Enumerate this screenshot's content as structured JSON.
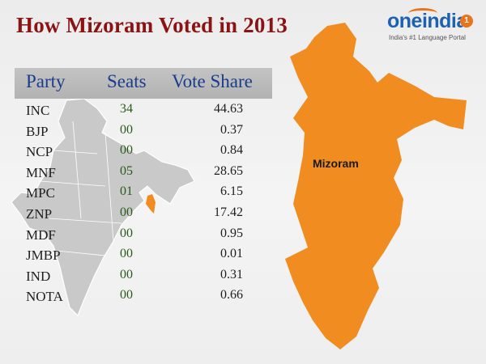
{
  "title": "How Mizoram Voted in 2013",
  "logo": {
    "name": "oneindia",
    "badge": "1",
    "tagline": "India's #1 Language Portal"
  },
  "map_label": "Mizoram",
  "colors": {
    "title": "#8a1414",
    "header_text": "#1a3c8c",
    "highlight": "#f08c20",
    "india_map": "#c9c9c9",
    "logo_blue": "#1c62b0"
  },
  "chart_data": {
    "type": "table",
    "columns": [
      "Party",
      "Seats",
      "Vote Share"
    ],
    "rows": [
      {
        "party": "INC",
        "seats": "34",
        "vote_share": "44.63"
      },
      {
        "party": "BJP",
        "seats": "00",
        "vote_share": "0.37"
      },
      {
        "party": "NCP",
        "seats": "00",
        "vote_share": "0.84"
      },
      {
        "party": "MNF",
        "seats": "05",
        "vote_share": "28.65"
      },
      {
        "party": "MPC",
        "seats": "01",
        "vote_share": "6.15"
      },
      {
        "party": "ZNP",
        "seats": "00",
        "vote_share": "17.42"
      },
      {
        "party": "MDF",
        "seats": "00",
        "vote_share": "0.95"
      },
      {
        "party": "JMBP",
        "seats": "00",
        "vote_share": "0.01"
      },
      {
        "party": "IND",
        "seats": "00",
        "vote_share": "0.31"
      },
      {
        "party": "NOTA",
        "seats": "00",
        "vote_share": "0.66"
      }
    ]
  }
}
